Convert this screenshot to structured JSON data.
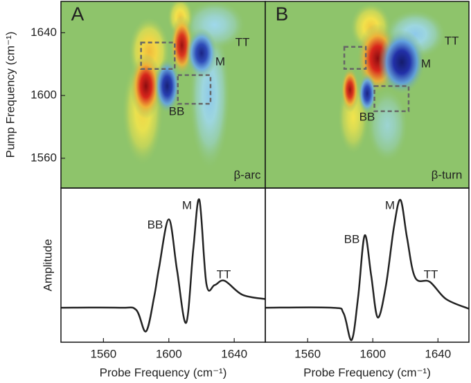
{
  "chart_data": [
    {
      "type": "heatmap",
      "panel_label": "A",
      "ylabel": "Pump Frequency (cm⁻¹)",
      "annotations": [
        "BB",
        "M",
        "TT",
        "β-arc"
      ],
      "xlim": [
        1534,
        1659
      ],
      "ylim": [
        1541,
        1660
      ],
      "yticks": [
        1560,
        1600,
        1640
      ],
      "background": "#8ec46b",
      "colormap": {
        "positive": [
          "#8ec46b",
          "#f2e44c",
          "#f0a030",
          "#d8261c",
          "#8c0c10"
        ],
        "negative": [
          "#8ec46b",
          "#9fd8ec",
          "#4c8ee0",
          "#2230a8",
          "#141c6c"
        ]
      },
      "peaks": [
        {
          "x": 1625,
          "y": 1600,
          "amp": -0.3,
          "wx": 8,
          "wy": 30
        },
        {
          "x": 1628,
          "y": 1645,
          "amp": -0.25,
          "wx": 12,
          "wy": 10
        },
        {
          "x": 1584,
          "y": 1590,
          "amp": 0.3,
          "wx": 8,
          "wy": 22
        },
        {
          "x": 1607,
          "y": 1650,
          "amp": 0.35,
          "wx": 5,
          "wy": 8
        },
        {
          "x": 1588,
          "y": 1628,
          "amp": 0.4,
          "wx": 8,
          "wy": 14
        },
        {
          "x": 1586,
          "y": 1606,
          "amp": 1,
          "wx": 6,
          "wy": 13
        },
        {
          "x": 1599,
          "y": 1606,
          "amp": -0.95,
          "wx": 5,
          "wy": 11
        },
        {
          "x": 1608,
          "y": 1632,
          "amp": 0.95,
          "wx": 4.5,
          "wy": 12
        },
        {
          "x": 1620,
          "y": 1627,
          "amp": -0.9,
          "wx": 6,
          "wy": 10
        }
      ],
      "boxes": [
        [
          1583,
          1603.6,
          1616.9,
          1633.8
        ],
        [
          1605.5,
          1625.5,
          1594.7,
          1613
        ]
      ]
    },
    {
      "type": "heatmap",
      "panel_label": "B",
      "annotations": [
        "BB",
        "M",
        "TT",
        "β-turn"
      ],
      "xlim": [
        1534,
        1659
      ],
      "ylim": [
        1541,
        1660
      ],
      "background": "#8ec46b",
      "colormap": {
        "positive": [
          "#8ec46b",
          "#f2e44c",
          "#f0a030",
          "#d8261c",
          "#8c0c10"
        ],
        "negative": [
          "#8ec46b",
          "#9fd8ec",
          "#4c8ee0",
          "#2230a8",
          "#141c6c"
        ]
      },
      "peaks": [
        {
          "x": 1609,
          "y": 1581,
          "amp": -0.2,
          "wx": 8,
          "wy": 15
        },
        {
          "x": 1588,
          "y": 1586,
          "amp": 0.25,
          "wx": 6,
          "wy": 15
        },
        {
          "x": 1626,
          "y": 1639,
          "amp": -0.3,
          "wx": 12,
          "wy": 10
        },
        {
          "x": 1598.7,
          "y": 1643.6,
          "amp": 0.35,
          "wx": 8,
          "wy": 10
        },
        {
          "x": 1603,
          "y": 1623.6,
          "amp": 1,
          "wx": 8,
          "wy": 14
        },
        {
          "x": 1617.8,
          "y": 1621.3,
          "amp": -1,
          "wx": 9,
          "wy": 13
        },
        {
          "x": 1586,
          "y": 1603.6,
          "amp": 0.95,
          "wx": 3.5,
          "wy": 9
        },
        {
          "x": 1596.6,
          "y": 1601.3,
          "amp": -0.9,
          "wx": 3.5,
          "wy": 8
        }
      ],
      "boxes": [
        [
          1582.5,
          1595.7,
          1617,
          1631
        ],
        [
          1601,
          1622,
          1590,
          1606
        ]
      ]
    },
    {
      "type": "line",
      "ylabel": "Amplitude",
      "xlabel": "Probe Frequency (cm⁻¹)",
      "annotations": [
        "BB",
        "M",
        "TT"
      ],
      "xlim": [
        1534,
        1659
      ],
      "ylim": [
        -0.32,
        1.11
      ],
      "xticks": [
        1560,
        1600,
        1640
      ],
      "color": "#222222",
      "x": [
        1534,
        1570,
        1580,
        1586,
        1591,
        1594,
        1600,
        1605,
        1610.6,
        1615,
        1618.7,
        1623,
        1628,
        1634,
        1645,
        1659
      ],
      "values": [
        0,
        0,
        -0.02,
        -0.22,
        0.1,
        0.37,
        0.82,
        0.35,
        -0.14,
        0.55,
        1.0,
        0.22,
        0.21,
        0.25,
        0.12,
        0.08
      ]
    },
    {
      "type": "line",
      "xlabel": "Probe Frequency (cm⁻¹)",
      "annotations": [
        "BB",
        "M",
        "TT"
      ],
      "xlim": [
        1534,
        1659
      ],
      "ylim": [
        -0.32,
        1.11
      ],
      "xticks": [
        1560,
        1600,
        1640
      ],
      "color": "#222222",
      "x": [
        1534,
        1575,
        1582,
        1587,
        1591,
        1595,
        1599,
        1603,
        1608,
        1613,
        1617,
        1621,
        1626,
        1635,
        1645,
        1659
      ],
      "values": [
        0,
        0,
        -0.05,
        -0.3,
        0.1,
        0.67,
        0.3,
        -0.09,
        0.2,
        0.75,
        1.0,
        0.65,
        0.28,
        0.24,
        0.08,
        -0.01
      ]
    }
  ]
}
